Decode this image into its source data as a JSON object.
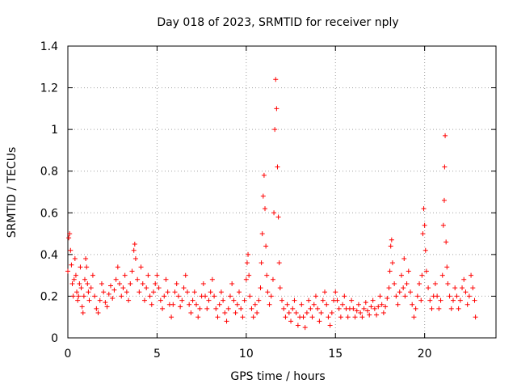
{
  "chart_data": {
    "type": "scatter",
    "title": "Day 018 of 2023, SRMTID for receiver nply",
    "xlabel": "GPS time / hours",
    "ylabel": "SRMTID / TECUs",
    "xlim": [
      0,
      24
    ],
    "ylim": [
      0,
      1.4
    ],
    "x_ticks": [
      0,
      5,
      10,
      15,
      20
    ],
    "x_tick_labels": [
      "0",
      "5",
      "10",
      "15",
      "20"
    ],
    "y_ticks": [
      0,
      0.2,
      0.4,
      0.6,
      0.8,
      1.0,
      1.2,
      1.4
    ],
    "y_tick_labels": [
      "0",
      "0.2",
      "0.4",
      "0.6",
      "0.8",
      "1",
      "1.2",
      "1.4"
    ],
    "grid": true,
    "marker": "+",
    "color": "#ff0000",
    "series": [
      {
        "name": "SRMTID",
        "points": [
          [
            0.0,
            0.32
          ],
          [
            0.05,
            0.48
          ],
          [
            0.1,
            0.5
          ],
          [
            0.15,
            0.42
          ],
          [
            0.2,
            0.35
          ],
          [
            0.25,
            0.26
          ],
          [
            0.3,
            0.2
          ],
          [
            0.35,
            0.28
          ],
          [
            0.4,
            0.38
          ],
          [
            0.45,
            0.3
          ],
          [
            0.5,
            0.22
          ],
          [
            0.55,
            0.18
          ],
          [
            0.6,
            0.2
          ],
          [
            0.65,
            0.26
          ],
          [
            0.7,
            0.34
          ],
          [
            0.75,
            0.24
          ],
          [
            0.8,
            0.15
          ],
          [
            0.85,
            0.12
          ],
          [
            0.9,
            0.2
          ],
          [
            0.95,
            0.28
          ],
          [
            1.0,
            0.38
          ],
          [
            1.05,
            0.34
          ],
          [
            1.1,
            0.26
          ],
          [
            1.15,
            0.22
          ],
          [
            1.2,
            0.18
          ],
          [
            1.3,
            0.24
          ],
          [
            1.4,
            0.3
          ],
          [
            1.5,
            0.2
          ],
          [
            1.6,
            0.14
          ],
          [
            1.7,
            0.12
          ],
          [
            1.8,
            0.18
          ],
          [
            1.9,
            0.26
          ],
          [
            2.0,
            0.22
          ],
          [
            2.1,
            0.17
          ],
          [
            2.2,
            0.15
          ],
          [
            2.3,
            0.21
          ],
          [
            2.4,
            0.25
          ],
          [
            2.5,
            0.19
          ],
          [
            2.6,
            0.23
          ],
          [
            2.7,
            0.28
          ],
          [
            2.8,
            0.34
          ],
          [
            2.9,
            0.26
          ],
          [
            3.0,
            0.2
          ],
          [
            3.1,
            0.24
          ],
          [
            3.2,
            0.3
          ],
          [
            3.3,
            0.22
          ],
          [
            3.4,
            0.18
          ],
          [
            3.5,
            0.26
          ],
          [
            3.6,
            0.32
          ],
          [
            3.7,
            0.42
          ],
          [
            3.75,
            0.45
          ],
          [
            3.8,
            0.38
          ],
          [
            3.9,
            0.28
          ],
          [
            4.0,
            0.22
          ],
          [
            4.1,
            0.34
          ],
          [
            4.2,
            0.26
          ],
          [
            4.3,
            0.18
          ],
          [
            4.4,
            0.24
          ],
          [
            4.5,
            0.3
          ],
          [
            4.6,
            0.2
          ],
          [
            4.7,
            0.16
          ],
          [
            4.8,
            0.22
          ],
          [
            4.9,
            0.26
          ],
          [
            5.0,
            0.3
          ],
          [
            5.1,
            0.24
          ],
          [
            5.2,
            0.18
          ],
          [
            5.3,
            0.14
          ],
          [
            5.4,
            0.2
          ],
          [
            5.5,
            0.28
          ],
          [
            5.6,
            0.22
          ],
          [
            5.7,
            0.16
          ],
          [
            5.8,
            0.1
          ],
          [
            5.9,
            0.16
          ],
          [
            6.0,
            0.22
          ],
          [
            6.1,
            0.26
          ],
          [
            6.2,
            0.2
          ],
          [
            6.3,
            0.15
          ],
          [
            6.4,
            0.18
          ],
          [
            6.5,
            0.24
          ],
          [
            6.6,
            0.3
          ],
          [
            6.7,
            0.22
          ],
          [
            6.8,
            0.16
          ],
          [
            6.9,
            0.12
          ],
          [
            7.0,
            0.18
          ],
          [
            7.1,
            0.22
          ],
          [
            7.2,
            0.16
          ],
          [
            7.3,
            0.1
          ],
          [
            7.4,
            0.14
          ],
          [
            7.5,
            0.2
          ],
          [
            7.6,
            0.26
          ],
          [
            7.7,
            0.2
          ],
          [
            7.8,
            0.14
          ],
          [
            7.9,
            0.18
          ],
          [
            8.0,
            0.22
          ],
          [
            8.1,
            0.28
          ],
          [
            8.2,
            0.2
          ],
          [
            8.3,
            0.14
          ],
          [
            8.4,
            0.1
          ],
          [
            8.5,
            0.16
          ],
          [
            8.6,
            0.22
          ],
          [
            8.7,
            0.18
          ],
          [
            8.8,
            0.12
          ],
          [
            8.9,
            0.08
          ],
          [
            9.0,
            0.14
          ],
          [
            9.1,
            0.2
          ],
          [
            9.2,
            0.26
          ],
          [
            9.3,
            0.18
          ],
          [
            9.4,
            0.12
          ],
          [
            9.5,
            0.16
          ],
          [
            9.6,
            0.22
          ],
          [
            9.7,
            0.14
          ],
          [
            9.8,
            0.1
          ],
          [
            9.9,
            0.18
          ],
          [
            10.0,
            0.28
          ],
          [
            10.05,
            0.36
          ],
          [
            10.1,
            0.4
          ],
          [
            10.15,
            0.3
          ],
          [
            10.2,
            0.2
          ],
          [
            10.3,
            0.14
          ],
          [
            10.4,
            0.1
          ],
          [
            10.5,
            0.16
          ],
          [
            10.6,
            0.12
          ],
          [
            10.7,
            0.18
          ],
          [
            10.8,
            0.24
          ],
          [
            10.85,
            0.36
          ],
          [
            10.9,
            0.5
          ],
          [
            10.95,
            0.68
          ],
          [
            11.0,
            0.78
          ],
          [
            11.05,
            0.62
          ],
          [
            11.1,
            0.44
          ],
          [
            11.15,
            0.3
          ],
          [
            11.2,
            0.22
          ],
          [
            11.3,
            0.16
          ],
          [
            11.4,
            0.2
          ],
          [
            11.5,
            0.28
          ],
          [
            11.55,
            0.6
          ],
          [
            11.6,
            1.0
          ],
          [
            11.65,
            1.24
          ],
          [
            11.7,
            1.1
          ],
          [
            11.75,
            0.82
          ],
          [
            11.8,
            0.58
          ],
          [
            11.85,
            0.36
          ],
          [
            11.9,
            0.24
          ],
          [
            12.0,
            0.18
          ],
          [
            12.1,
            0.14
          ],
          [
            12.2,
            0.1
          ],
          [
            12.3,
            0.16
          ],
          [
            12.4,
            0.12
          ],
          [
            12.5,
            0.08
          ],
          [
            12.6,
            0.14
          ],
          [
            12.7,
            0.18
          ],
          [
            12.8,
            0.12
          ],
          [
            12.9,
            0.06
          ],
          [
            13.0,
            0.1
          ],
          [
            13.1,
            0.16
          ],
          [
            13.2,
            0.1
          ],
          [
            13.3,
            0.05
          ],
          [
            13.4,
            0.12
          ],
          [
            13.5,
            0.18
          ],
          [
            13.6,
            0.14
          ],
          [
            13.7,
            0.1
          ],
          [
            13.8,
            0.16
          ],
          [
            13.9,
            0.2
          ],
          [
            14.0,
            0.14
          ],
          [
            14.1,
            0.08
          ],
          [
            14.2,
            0.12
          ],
          [
            14.3,
            0.18
          ],
          [
            14.4,
            0.22
          ],
          [
            14.5,
            0.16
          ],
          [
            14.6,
            0.1
          ],
          [
            14.7,
            0.06
          ],
          [
            14.8,
            0.12
          ],
          [
            14.9,
            0.18
          ],
          [
            15.0,
            0.22
          ],
          [
            15.1,
            0.18
          ],
          [
            15.2,
            0.14
          ],
          [
            15.3,
            0.1
          ],
          [
            15.4,
            0.16
          ],
          [
            15.5,
            0.2
          ],
          [
            15.6,
            0.14
          ],
          [
            15.7,
            0.1
          ],
          [
            15.8,
            0.14
          ],
          [
            15.9,
            0.18
          ],
          [
            16.0,
            0.14
          ],
          [
            16.1,
            0.1
          ],
          [
            16.2,
            0.13
          ],
          [
            16.3,
            0.16
          ],
          [
            16.4,
            0.12
          ],
          [
            16.5,
            0.1
          ],
          [
            16.6,
            0.14
          ],
          [
            16.7,
            0.17
          ],
          [
            16.8,
            0.13
          ],
          [
            16.9,
            0.11
          ],
          [
            17.0,
            0.15
          ],
          [
            17.1,
            0.18
          ],
          [
            17.2,
            0.14
          ],
          [
            17.3,
            0.11
          ],
          [
            17.4,
            0.15
          ],
          [
            17.5,
            0.2
          ],
          [
            17.6,
            0.16
          ],
          [
            17.7,
            0.12
          ],
          [
            17.8,
            0.15
          ],
          [
            17.9,
            0.19
          ],
          [
            18.0,
            0.24
          ],
          [
            18.05,
            0.32
          ],
          [
            18.1,
            0.44
          ],
          [
            18.15,
            0.47
          ],
          [
            18.2,
            0.36
          ],
          [
            18.3,
            0.26
          ],
          [
            18.4,
            0.2
          ],
          [
            18.5,
            0.16
          ],
          [
            18.6,
            0.22
          ],
          [
            18.7,
            0.3
          ],
          [
            18.8,
            0.24
          ],
          [
            18.85,
            0.38
          ],
          [
            18.9,
            0.2
          ],
          [
            19.0,
            0.26
          ],
          [
            19.1,
            0.32
          ],
          [
            19.2,
            0.22
          ],
          [
            19.3,
            0.16
          ],
          [
            19.4,
            0.1
          ],
          [
            19.5,
            0.14
          ],
          [
            19.6,
            0.2
          ],
          [
            19.7,
            0.26
          ],
          [
            19.8,
            0.18
          ],
          [
            19.85,
            0.3
          ],
          [
            19.9,
            0.5
          ],
          [
            19.95,
            0.62
          ],
          [
            20.0,
            0.54
          ],
          [
            20.05,
            0.42
          ],
          [
            20.1,
            0.32
          ],
          [
            20.2,
            0.24
          ],
          [
            20.3,
            0.18
          ],
          [
            20.4,
            0.14
          ],
          [
            20.5,
            0.2
          ],
          [
            20.6,
            0.26
          ],
          [
            20.7,
            0.2
          ],
          [
            20.8,
            0.14
          ],
          [
            20.9,
            0.18
          ],
          [
            21.0,
            0.3
          ],
          [
            21.05,
            0.54
          ],
          [
            21.1,
            0.66
          ],
          [
            21.12,
            0.82
          ],
          [
            21.15,
            0.97
          ],
          [
            21.2,
            0.46
          ],
          [
            21.25,
            0.34
          ],
          [
            21.3,
            0.26
          ],
          [
            21.4,
            0.2
          ],
          [
            21.5,
            0.14
          ],
          [
            21.6,
            0.18
          ],
          [
            21.7,
            0.24
          ],
          [
            21.8,
            0.2
          ],
          [
            21.9,
            0.14
          ],
          [
            22.0,
            0.18
          ],
          [
            22.1,
            0.24
          ],
          [
            22.2,
            0.28
          ],
          [
            22.3,
            0.22
          ],
          [
            22.4,
            0.16
          ],
          [
            22.5,
            0.2
          ],
          [
            22.6,
            0.3
          ],
          [
            22.7,
            0.24
          ],
          [
            22.8,
            0.18
          ],
          [
            22.85,
            0.1
          ]
        ]
      }
    ]
  }
}
